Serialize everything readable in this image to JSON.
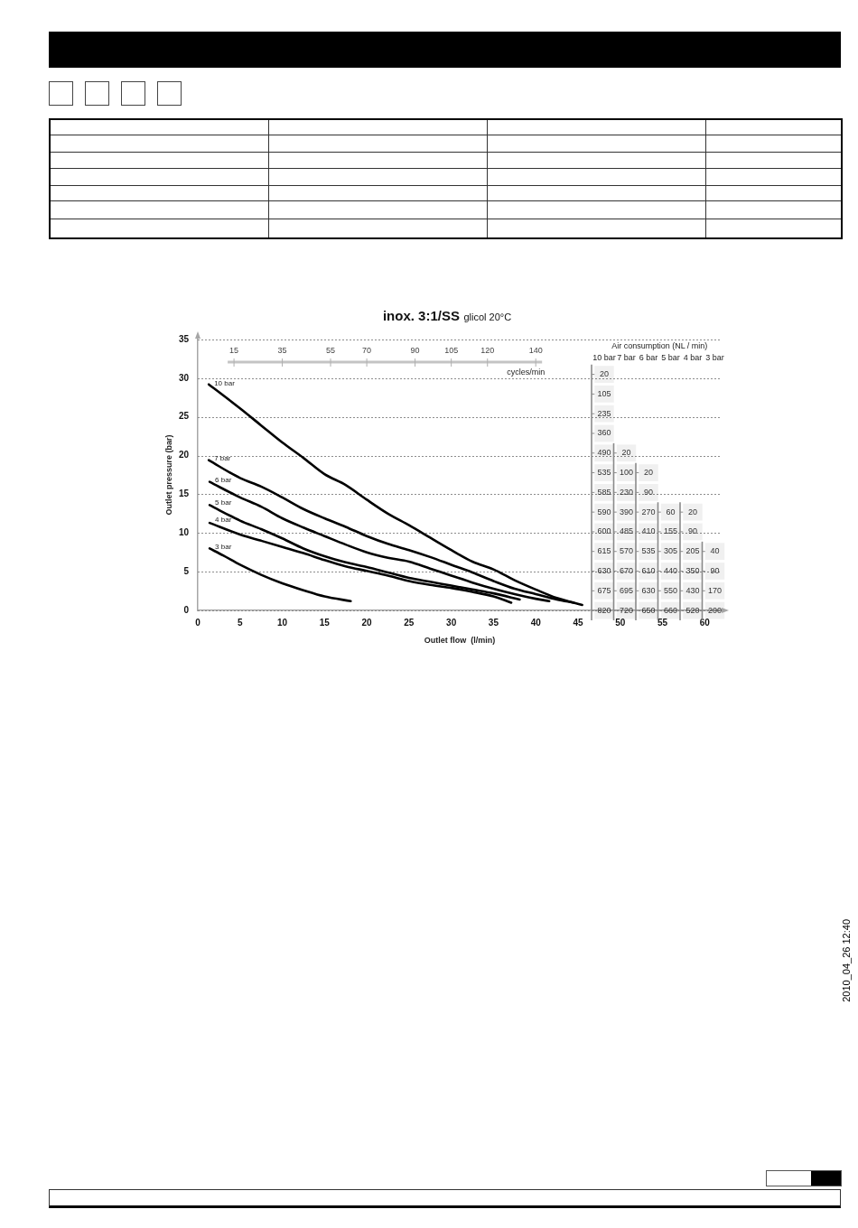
{
  "chart_data": [
    {
      "type": "line",
      "title": "inox. 3:1/SS",
      "subtitle": "glicol 20°C",
      "xlabel": "Outlet flow  (l/min)",
      "ylabel": "Outlet pressure (bar)",
      "x2label": "cycles/min",
      "xlim": [
        0,
        62
      ],
      "xticks": [
        0,
        5,
        10,
        15,
        20,
        25,
        30,
        35,
        40,
        45,
        50,
        55,
        60
      ],
      "ylim": [
        0,
        35
      ],
      "yticks": [
        0,
        5,
        10,
        15,
        20,
        25,
        30,
        35
      ],
      "x2lim": [
        0,
        217
      ],
      "x2ticks": [
        15,
        35,
        55,
        70,
        90,
        105,
        120,
        140
      ],
      "annotations": [
        "2010_04_26 12:40"
      ],
      "grid": "y",
      "marker": "none",
      "series": [
        {
          "name": "10 bar",
          "color": "#000000",
          "x": [
            1.3,
            3,
            5,
            7.5,
            10,
            12.5,
            15,
            17.5,
            20,
            22.5,
            25,
            27.5,
            30,
            32.5,
            35,
            37.5,
            40,
            42.5,
            45.5
          ],
          "values": [
            29.2,
            27.8,
            26.1,
            23.9,
            21.7,
            19.7,
            17.6,
            16.2,
            14.3,
            12.5,
            11.0,
            9.4,
            7.8,
            6.3,
            5.3,
            3.9,
            2.7,
            1.6,
            0.7
          ]
        },
        {
          "name": "7 bar",
          "color": "#000000",
          "x": [
            1.3,
            5,
            7.5,
            10,
            12.5,
            15,
            17.5,
            20,
            22.5,
            25,
            27.5,
            30,
            32.5,
            35,
            37.5,
            40,
            42.5,
            44.5
          ],
          "values": [
            19.4,
            17.1,
            16.0,
            14.6,
            13.1,
            11.9,
            10.8,
            9.6,
            8.6,
            7.8,
            6.9,
            5.9,
            4.9,
            3.8,
            2.8,
            2.1,
            1.4,
            1.0
          ]
        },
        {
          "name": "6 bar",
          "color": "#000000",
          "x": [
            1.4,
            5,
            7.5,
            10,
            12.5,
            15,
            17.5,
            20,
            22.5,
            25,
            27.5,
            30,
            32.5,
            35,
            37.5,
            40,
            41.6
          ],
          "values": [
            16.6,
            14.6,
            13.4,
            11.9,
            10.7,
            9.6,
            8.5,
            7.5,
            6.8,
            6.3,
            5.4,
            4.5,
            3.6,
            2.8,
            2.1,
            1.5,
            1.2
          ]
        },
        {
          "name": "5 bar",
          "color": "#000000",
          "x": [
            1.4,
            5,
            7.5,
            10,
            12.5,
            15,
            17.5,
            20,
            22.5,
            25,
            27.5,
            30,
            32.5,
            35,
            38.1
          ],
          "values": [
            13.6,
            11.6,
            10.5,
            9.3,
            8.0,
            7.0,
            6.2,
            5.6,
            4.9,
            4.2,
            3.7,
            3.2,
            2.7,
            2.2,
            1.4
          ]
        },
        {
          "name": "4 bar",
          "color": "#000000",
          "x": [
            1.4,
            5,
            7.5,
            10,
            12.5,
            15,
            17.5,
            20,
            22.5,
            25,
            27.5,
            30,
            32.5,
            35,
            37.1
          ],
          "values": [
            11.3,
            9.8,
            9.0,
            8.2,
            7.4,
            6.5,
            5.7,
            5.1,
            4.5,
            3.8,
            3.3,
            2.9,
            2.4,
            1.8,
            1.0
          ]
        },
        {
          "name": "3 bar",
          "color": "#000000",
          "x": [
            1.4,
            3,
            5,
            7.5,
            10,
            12.5,
            15,
            18.1
          ],
          "values": [
            8.0,
            7.1,
            5.9,
            4.6,
            3.5,
            2.6,
            1.8,
            1.2
          ]
        }
      ]
    },
    {
      "type": "heatmap",
      "title": "Air consumption (NL / min)",
      "categories": [
        "10 bar",
        "7 bar",
        "6 bar",
        "5 bar",
        "4 bar",
        "3 bar"
      ],
      "y_categories": [
        null,
        null,
        null,
        null,
        null,
        null,
        null,
        null,
        null,
        null,
        null,
        null,
        null
      ],
      "data_labels": true,
      "cells": [
        [
          20,
          null,
          null,
          null,
          null,
          null
        ],
        [
          105,
          null,
          null,
          null,
          null,
          null
        ],
        [
          235,
          null,
          null,
          null,
          null,
          null
        ],
        [
          360,
          null,
          null,
          null,
          null,
          null
        ],
        [
          490,
          20,
          null,
          null,
          null,
          null
        ],
        [
          535,
          100,
          20,
          null,
          null,
          null
        ],
        [
          585,
          230,
          90,
          null,
          null,
          null
        ],
        [
          590,
          390,
          270,
          60,
          20,
          null
        ],
        [
          600,
          485,
          410,
          155,
          90,
          null
        ],
        [
          615,
          570,
          535,
          305,
          205,
          40
        ],
        [
          630,
          670,
          610,
          440,
          350,
          90
        ],
        [
          675,
          695,
          630,
          550,
          430,
          170
        ],
        [
          820,
          720,
          650,
          660,
          520,
          200
        ]
      ]
    }
  ]
}
